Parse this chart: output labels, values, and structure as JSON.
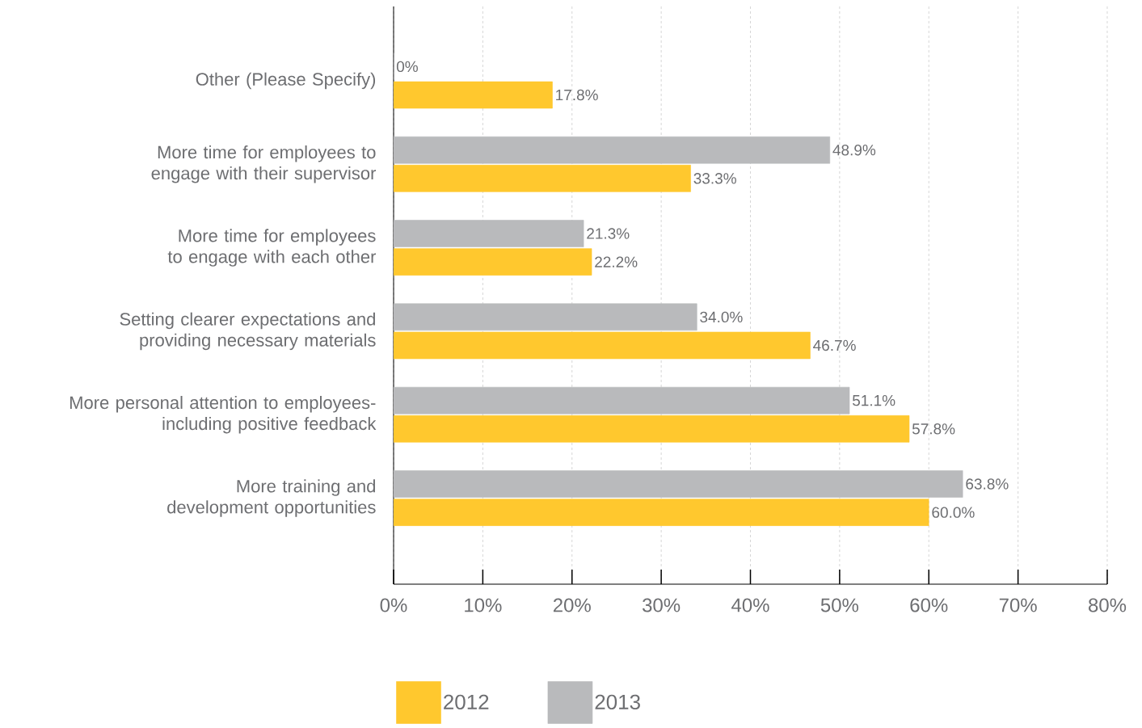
{
  "chart_data": {
    "type": "bar",
    "orientation": "horizontal",
    "categories": [
      "Other (Please Specify)",
      "More time for employees to engage with their supervisor",
      "More time for employees to engage with each other",
      "Setting clearer expectations and providing necessary materials",
      "More personal attention to employees-including positive feedback",
      "More training and development opportunities"
    ],
    "series": [
      {
        "name": "2012",
        "color": "#ffc82e",
        "values": [
          17.8,
          33.3,
          22.2,
          46.7,
          57.8,
          60.0
        ],
        "value_labels": [
          "17.8%",
          "33.3%",
          "22.2%",
          "46.7%",
          "57.8%",
          "60.0%"
        ]
      },
      {
        "name": "2013",
        "color": "#b9babc",
        "values": [
          0,
          48.9,
          21.3,
          34.0,
          51.1,
          63.8
        ],
        "value_labels": [
          "0%",
          "48.9%",
          "21.3%",
          "34.0%",
          "51.1%",
          "63.8%"
        ]
      }
    ],
    "xlim": [
      0,
      80
    ],
    "xticks": [
      {
        "value": 0,
        "label": "0%"
      },
      {
        "value": 10,
        "label": "10%"
      },
      {
        "value": 20,
        "label": "20%"
      },
      {
        "value": 30,
        "label": "30%"
      },
      {
        "value": 40,
        "label": "40%"
      },
      {
        "value": 50,
        "label": "50%"
      },
      {
        "value": 60,
        "label": "60%"
      },
      {
        "value": 70,
        "label": "70%"
      },
      {
        "value": 80,
        "label": "80%"
      }
    ],
    "grid": "x",
    "legend": "bottom"
  }
}
